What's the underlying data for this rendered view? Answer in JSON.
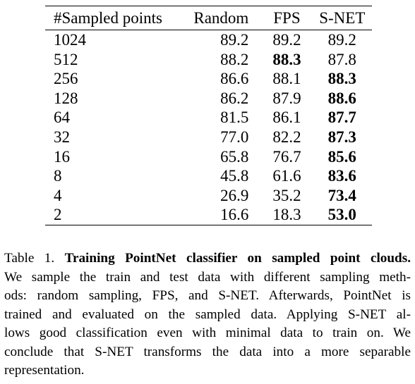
{
  "table": {
    "headers": [
      "#Sampled points",
      "Random",
      "FPS",
      "S-NET"
    ],
    "rows": [
      {
        "points": "1024",
        "random": "89.2",
        "fps": "89.2",
        "snet": "89.2",
        "bold": ""
      },
      {
        "points": "512",
        "random": "88.2",
        "fps": "88.3",
        "snet": "87.8",
        "bold": "fps"
      },
      {
        "points": "256",
        "random": "86.6",
        "fps": "88.1",
        "snet": "88.3",
        "bold": "snet"
      },
      {
        "points": "128",
        "random": "86.2",
        "fps": "87.9",
        "snet": "88.6",
        "bold": "snet"
      },
      {
        "points": "64",
        "random": "81.5",
        "fps": "86.1",
        "snet": "87.7",
        "bold": "snet"
      },
      {
        "points": "32",
        "random": "77.0",
        "fps": "82.2",
        "snet": "87.3",
        "bold": "snet"
      },
      {
        "points": "16",
        "random": "65.8",
        "fps": "76.7",
        "snet": "85.6",
        "bold": "snet"
      },
      {
        "points": "8",
        "random": "45.8",
        "fps": "61.6",
        "snet": "83.6",
        "bold": "snet"
      },
      {
        "points": "4",
        "random": "26.9",
        "fps": "35.2",
        "snet": "73.4",
        "bold": "snet"
      },
      {
        "points": "2",
        "random": "16.6",
        "fps": "18.3",
        "snet": "53.0",
        "bold": "snet"
      }
    ]
  },
  "caption": {
    "label": "Table 1. ",
    "title": "Training PointNet classifier on sampled point clouds.",
    "lines": [
      "We sample the train and test data with different sampling meth-",
      "ods: random sampling, FPS, and S-NET. Afterwards, PointNet is",
      "trained and evaluated on the sampled data.  Applying S-NET al-",
      "lows good classification even with minimal data to train on.  We",
      "conclude that S-NET transforms the data into a more separable",
      "representation."
    ]
  }
}
